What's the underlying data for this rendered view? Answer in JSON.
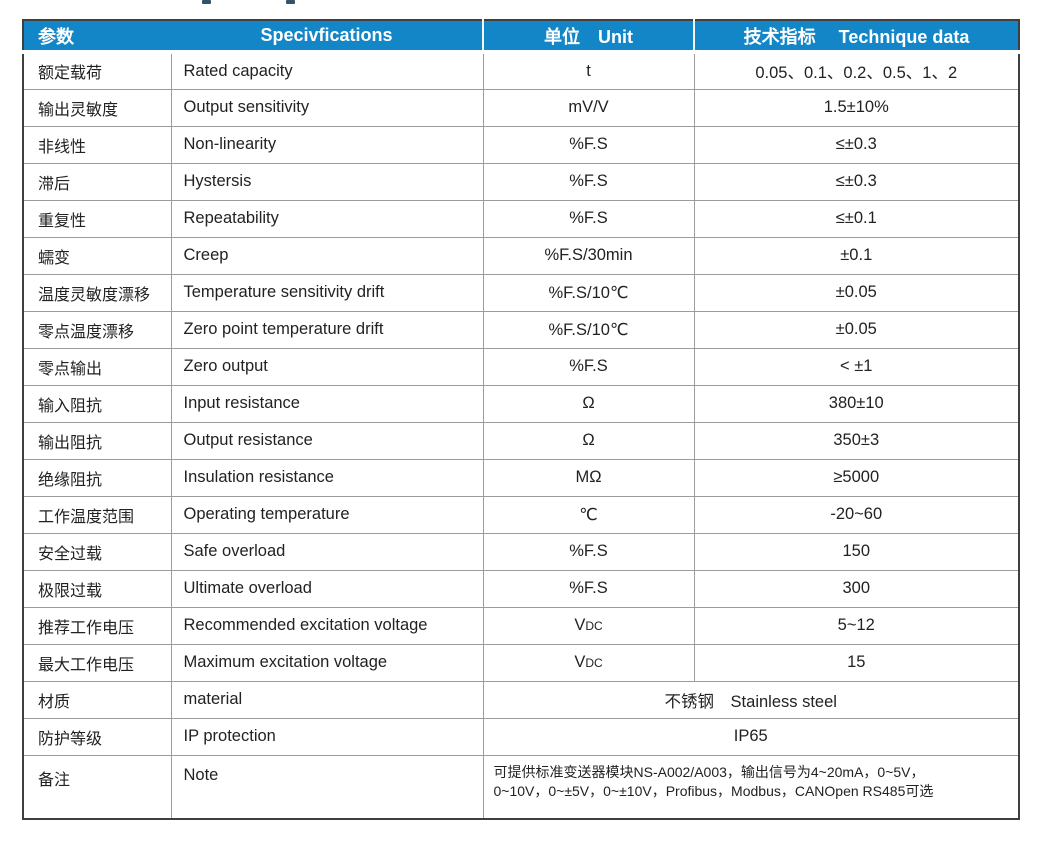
{
  "colors": {
    "header_bg": "#1386C8",
    "header_text": "#ffffff",
    "grid_line": "#9b9b9b",
    "outer_border": "#3f3f3f",
    "body_text": "#222222"
  },
  "header": {
    "param": "参数",
    "spec": "Specivfications",
    "unit": "单位　Unit",
    "tech": "技术指标　 Technique data"
  },
  "rows": [
    {
      "param": "额定载荷",
      "spec": "Rated capacity",
      "unit": "t",
      "value": "0.05、0.1、0.2、0.5、1、2"
    },
    {
      "param": "输出灵敏度",
      "spec": "Output sensitivity",
      "unit": "mV/V",
      "value": "1.5±10%"
    },
    {
      "param": "非线性",
      "spec": "Non-linearity",
      "unit": "%F.S",
      "value": "≤±0.3"
    },
    {
      "param": "滞后",
      "spec": "Hystersis",
      "unit": "%F.S",
      "value": "≤±0.3"
    },
    {
      "param": "重复性",
      "spec": "Repeatability",
      "unit": "%F.S",
      "value": "≤±0.1"
    },
    {
      "param": "蠕变",
      "spec": "Creep",
      "unit": "%F.S/30min",
      "value": "±0.1"
    },
    {
      "param": "温度灵敏度漂移",
      "spec": "Temperature sensitivity drift",
      "unit": "%F.S/10℃",
      "value": "±0.05"
    },
    {
      "param": "零点温度漂移",
      "spec": "Zero point temperature drift",
      "unit": "%F.S/10℃",
      "value": "±0.05"
    },
    {
      "param": "零点输出",
      "spec": "Zero output",
      "unit": "%F.S",
      "value": "< ±1"
    },
    {
      "param": "输入阻抗",
      "spec": "Input resistance",
      "unit": "Ω",
      "value": "380±10"
    },
    {
      "param": "输出阻抗",
      "spec": "Output resistance",
      "unit": "Ω",
      "value": "350±3"
    },
    {
      "param": "绝缘阻抗",
      "spec": "Insulation resistance",
      "unit": "MΩ",
      "value": "≥5000"
    },
    {
      "param": "工作温度范围",
      "spec": "Operating temperature",
      "unit": "℃",
      "value": "-20~60"
    },
    {
      "param": "安全过载",
      "spec": "Safe overload",
      "unit": "%F.S",
      "value": "150"
    },
    {
      "param": "极限过载",
      "spec": "Ultimate overload",
      "unit": "%F.S",
      "value": "300"
    },
    {
      "param": "推荐工作电压",
      "spec": "Recommended excitation voltage",
      "unit_main": "V",
      "unit_sub": "DC",
      "value": "5~12"
    },
    {
      "param": "最大工作电压",
      "spec": "Maximum excitation voltage",
      "unit_main": "V",
      "unit_sub": "DC",
      "value": "15"
    },
    {
      "param": "材质",
      "spec": "material",
      "merged_value": "不锈钢　Stainless steel"
    },
    {
      "param": "防护等级",
      "spec": "IP protection",
      "merged_value": "IP65"
    },
    {
      "param": "备注",
      "spec": "Note",
      "note_lines": [
        "可提供标准变送器模块NS-A002/A003，输出信号为4~20mA，0~5V，",
        "0~10V，0~±5V，0~±10V，Profibus，Modbus，CANOpen RS485可选"
      ]
    }
  ]
}
